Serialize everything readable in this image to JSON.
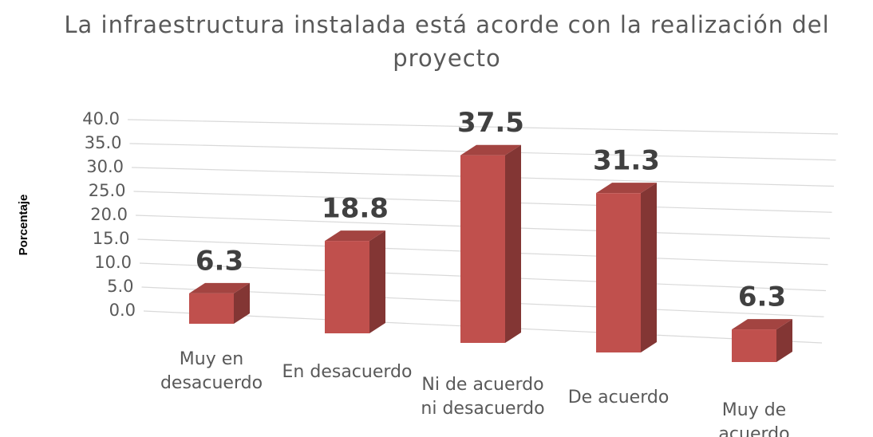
{
  "chart_data": {
    "type": "bar3d",
    "title": "La infraestructura instalada está acorde con la realización del proyecto",
    "y_label": "Porcentaje",
    "categories": [
      "Muy en desacuerdo",
      "En desacuerdo",
      "Ni de acuerdo ni desacuerdo",
      "De acuerdo",
      "Muy de acuerdo"
    ],
    "values": [
      6.3,
      18.8,
      37.5,
      31.3,
      6.3
    ],
    "color": "#c0504d",
    "ylim": [
      0,
      40
    ],
    "yticks": [
      {
        "value": 0,
        "label": "0.0"
      },
      {
        "value": 5,
        "label": "5.0"
      },
      {
        "value": 10,
        "label": "10.0"
      },
      {
        "value": 15,
        "label": "15.0"
      },
      {
        "value": 20,
        "label": "20.0"
      },
      {
        "value": 25,
        "label": "25.0"
      },
      {
        "value": 30,
        "label": "30.0"
      },
      {
        "value": 35,
        "label": "35.0"
      },
      {
        "value": 40,
        "label": "40.0"
      }
    ],
    "grid": true
  }
}
